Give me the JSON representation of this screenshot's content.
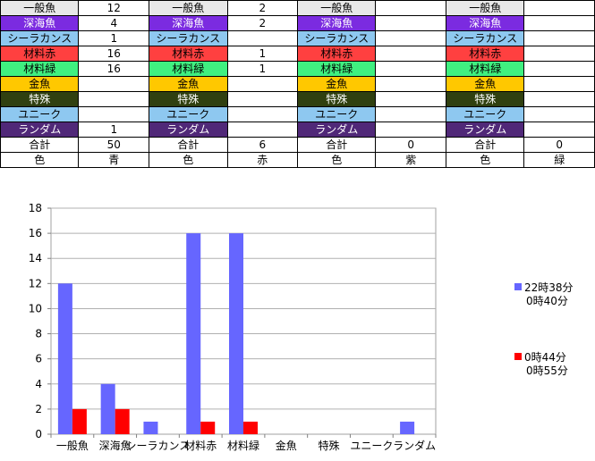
{
  "sheet": {
    "rows": [
      {
        "key": "ippan",
        "label": "一般魚",
        "bg": "#e8e8e8",
        "fg": "#000000",
        "vals": [
          "12",
          "2",
          "",
          ""
        ]
      },
      {
        "key": "shinkai",
        "label": "深海魚",
        "bg": "#7b2be0",
        "fg": "#ffffff",
        "vals": [
          "4",
          "2",
          "",
          ""
        ]
      },
      {
        "key": "coela",
        "label": "シーラカンス",
        "bg": "#8ec8f0",
        "fg": "#000000",
        "vals": [
          "1",
          "",
          "",
          ""
        ]
      },
      {
        "key": "red",
        "label": "材料赤",
        "bg": "#ff4040",
        "fg": "#000000",
        "vals": [
          "16",
          "1",
          "",
          ""
        ]
      },
      {
        "key": "green",
        "label": "材料緑",
        "bg": "#40f080",
        "fg": "#000000",
        "vals": [
          "16",
          "1",
          "",
          ""
        ]
      },
      {
        "key": "gold",
        "label": "金魚",
        "bg": "#ffc800",
        "fg": "#000000",
        "vals": [
          "",
          "",
          "",
          ""
        ]
      },
      {
        "key": "special",
        "label": "特殊",
        "bg": "#304010",
        "fg": "#ffffff",
        "vals": [
          "",
          "",
          "",
          ""
        ]
      },
      {
        "key": "unique",
        "label": "ユニーク",
        "bg": "#8ec8f0",
        "fg": "#000000",
        "vals": [
          "",
          "",
          "",
          ""
        ]
      },
      {
        "key": "random",
        "label": "ランダム",
        "bg": "#502878",
        "fg": "#ffffff",
        "vals": [
          "1",
          "",
          "",
          ""
        ]
      },
      {
        "key": "total",
        "label": "合計",
        "bg": "#ffffff",
        "fg": "#000000",
        "vals": [
          "50",
          "6",
          "0",
          "0"
        ]
      },
      {
        "key": "color",
        "label": "色",
        "bg": "#ffffff",
        "fg": "#000000",
        "vals": [
          "青",
          "赤",
          "紫",
          "緑"
        ]
      }
    ]
  },
  "chart_data": {
    "type": "bar",
    "categories": [
      "一般魚",
      "深海魚",
      "シーラカンス",
      "材料赤",
      "材料緑",
      "金魚",
      "特殊",
      "ユニーク",
      "ランダム"
    ],
    "ylim": [
      0,
      18
    ],
    "yticks": [
      0,
      2,
      4,
      6,
      8,
      10,
      12,
      14,
      16,
      18
    ],
    "grid": true,
    "legend_position": "right",
    "series": [
      {
        "name": "22時38分\n0時40分",
        "color": "#6666ff",
        "values": [
          12,
          4,
          1,
          16,
          16,
          0,
          0,
          0,
          1
        ]
      },
      {
        "name": "0時44分\n0時55分",
        "color": "#ff0000",
        "values": [
          2,
          2,
          0,
          1,
          1,
          0,
          0,
          0,
          0
        ]
      }
    ]
  }
}
